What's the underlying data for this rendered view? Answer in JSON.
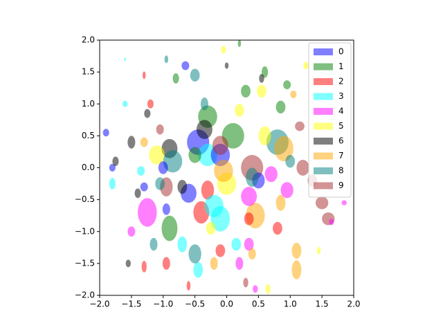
{
  "chart_data": {
    "type": "ellipse-scatter",
    "xlim": [
      -2,
      2
    ],
    "ylim": [
      -2,
      2
    ],
    "xticks": [
      {
        "value": -2,
        "label": "−2.0"
      },
      {
        "value": -1.5,
        "label": "−1.5"
      },
      {
        "value": -1,
        "label": "−1.0"
      },
      {
        "value": -0.5,
        "label": "−0.5"
      },
      {
        "value": 0,
        "label": "0.0"
      },
      {
        "value": 0.5,
        "label": "0.5"
      },
      {
        "value": 1,
        "label": "1.0"
      },
      {
        "value": 1.5,
        "label": "1.5"
      },
      {
        "value": 2,
        "label": "2.0"
      }
    ],
    "yticks": [
      {
        "value": -2,
        "label": "−2.0"
      },
      {
        "value": -1.5,
        "label": "−1.5"
      },
      {
        "value": -1,
        "label": "−1.0"
      },
      {
        "value": -0.5,
        "label": "−0.5"
      },
      {
        "value": 0,
        "label": "0.0"
      },
      {
        "value": 0.5,
        "label": "0.5"
      },
      {
        "value": 1,
        "label": "1.0"
      },
      {
        "value": 1.5,
        "label": "1.5"
      },
      {
        "value": 2,
        "label": "2.0"
      }
    ],
    "legend": "upper right",
    "alpha": 0.5,
    "series": [
      {
        "name": "0",
        "color": "#0000ff",
        "x": [
          -0.45,
          -0.1,
          -0.6,
          -1.0,
          -0.65,
          -1.9,
          -1.8,
          0.5,
          -0.95,
          -1.3
        ],
        "y": [
          0.4,
          0.2,
          -0.4,
          0.0,
          1.6,
          0.55,
          0.0,
          -0.2,
          -0.65,
          -0.3
        ],
        "w": [
          0.35,
          0.3,
          0.25,
          0.15,
          0.12,
          0.1,
          0.1,
          0.2,
          0.12,
          0.12
        ],
        "h": [
          0.4,
          0.35,
          0.3,
          0.2,
          0.14,
          0.12,
          0.12,
          0.25,
          0.18,
          0.14
        ]
      },
      {
        "name": "1",
        "color": "#008000",
        "x": [
          0.1,
          -0.3,
          0.3,
          -0.9,
          0.2,
          0.85,
          -0.8,
          0.6,
          0.95,
          -0.5
        ],
        "y": [
          0.5,
          0.8,
          1.2,
          -0.95,
          1.95,
          0.95,
          1.4,
          1.5,
          1.3,
          0.2
        ],
        "w": [
          0.35,
          0.3,
          0.15,
          0.25,
          0.05,
          0.15,
          0.1,
          0.1,
          0.12,
          0.2
        ],
        "h": [
          0.4,
          0.35,
          0.2,
          0.4,
          0.12,
          0.2,
          0.16,
          0.18,
          0.14,
          0.25
        ]
      },
      {
        "name": "2",
        "color": "#ff0000",
        "x": [
          -0.4,
          -0.3,
          -1.2,
          0.8,
          -0.95,
          -0.1,
          -1.3,
          -1.3,
          0.35,
          -0.6
        ],
        "y": [
          -0.7,
          -0.35,
          1.0,
          -0.95,
          -1.5,
          -1.3,
          1.45,
          -1.55,
          -0.8,
          -1.85
        ],
        "w": [
          0.25,
          0.2,
          0.1,
          0.15,
          0.12,
          0.15,
          0.05,
          0.08,
          0.15,
          0.06
        ],
        "h": [
          0.35,
          0.3,
          0.14,
          0.2,
          0.2,
          0.2,
          0.12,
          0.18,
          0.2,
          0.15
        ]
      },
      {
        "name": "3",
        "color": "#00ffff",
        "x": [
          -0.3,
          -0.1,
          -0.45,
          -1.8,
          -0.2,
          -1.6,
          -1.35,
          -0.7,
          0.15,
          -1.6
        ],
        "y": [
          0.2,
          -0.8,
          -1.6,
          -0.25,
          -0.6,
          1.0,
          -0.05,
          -1.2,
          -1.2,
          1.7
        ],
        "w": [
          0.3,
          0.3,
          0.15,
          0.1,
          0.3,
          0.08,
          0.12,
          0.15,
          0.15,
          0.03
        ],
        "h": [
          0.35,
          0.4,
          0.25,
          0.18,
          0.35,
          0.1,
          0.15,
          0.25,
          0.2,
          0.05
        ]
      },
      {
        "name": "4",
        "color": "#ff00ff",
        "x": [
          -1.25,
          0.35,
          0.95,
          0.35,
          0.2,
          1.65,
          1.85,
          0.45,
          -1.5,
          0.7
        ],
        "y": [
          -0.7,
          -0.45,
          -0.35,
          -1.2,
          -1.5,
          -0.85,
          -0.55,
          -1.9,
          -1.0,
          -0.1
        ],
        "w": [
          0.3,
          0.25,
          0.2,
          0.15,
          0.12,
          0.08,
          0.08,
          0.08,
          0.12,
          0.2
        ],
        "h": [
          0.45,
          0.3,
          0.25,
          0.2,
          0.2,
          0.1,
          0.08,
          0.12,
          0.16,
          0.25
        ]
      },
      {
        "name": "5",
        "color": "#ffff00",
        "x": [
          0.0,
          -1.1,
          0.6,
          0.55,
          -0.05,
          0.65,
          1.45,
          -0.25,
          1.25,
          0.2
        ],
        "y": [
          -0.25,
          0.2,
          0.5,
          1.2,
          1.85,
          -1.9,
          -1.3,
          -0.95,
          1.6,
          0.9
        ],
        "w": [
          0.3,
          0.25,
          0.2,
          0.15,
          0.08,
          0.08,
          0.06,
          0.15,
          0.08,
          0.15
        ],
        "h": [
          0.35,
          0.3,
          0.3,
          0.2,
          0.12,
          0.15,
          0.12,
          0.2,
          0.12,
          0.2
        ]
      },
      {
        "name": "6",
        "color": "#000000",
        "x": [
          -0.9,
          -0.35,
          -1.5,
          -0.7,
          0.0,
          -1.55,
          -1.75,
          -1.25,
          0.55,
          -1.4
        ],
        "y": [
          0.3,
          0.6,
          0.4,
          -0.3,
          1.6,
          -1.5,
          0.1,
          0.85,
          1.4,
          -0.4
        ],
        "w": [
          0.25,
          0.25,
          0.12,
          0.15,
          0.06,
          0.08,
          0.1,
          0.1,
          0.08,
          0.1
        ],
        "h": [
          0.3,
          0.3,
          0.2,
          0.22,
          0.1,
          0.12,
          0.15,
          0.14,
          0.14,
          0.15
        ]
      },
      {
        "name": "7",
        "color": "#ffa500",
        "x": [
          0.45,
          0.9,
          1.1,
          1.1,
          -0.05,
          0.4,
          -1.3,
          0.85,
          -0.2,
          1.05
        ],
        "y": [
          -0.75,
          0.3,
          -1.6,
          -1.3,
          -0.05,
          -1.35,
          0.4,
          -0.55,
          -1.5,
          1.15
        ],
        "w": [
          0.3,
          0.3,
          0.15,
          0.15,
          0.3,
          0.12,
          0.12,
          0.15,
          0.12,
          0.1
        ],
        "h": [
          0.4,
          0.4,
          0.3,
          0.25,
          0.35,
          0.18,
          0.15,
          0.25,
          0.2,
          0.12
        ]
      },
      {
        "name": "8",
        "color": "#008080",
        "x": [
          0.8,
          -0.85,
          -0.5,
          -0.95,
          -0.5,
          -1.15,
          -1.05,
          0.4,
          -0.35,
          1.0
        ],
        "y": [
          0.4,
          0.1,
          1.45,
          1.7,
          -1.35,
          -1.2,
          -0.25,
          -0.15,
          1.0,
          0.1
        ],
        "w": [
          0.35,
          0.3,
          0.15,
          0.06,
          0.2,
          0.12,
          0.15,
          0.2,
          0.12,
          0.15
        ],
        "h": [
          0.4,
          0.35,
          0.2,
          0.12,
          0.3,
          0.2,
          0.2,
          0.3,
          0.2,
          0.2
        ]
      },
      {
        "name": "9",
        "color": "#a52a2a",
        "x": [
          0.4,
          -0.95,
          1.2,
          1.5,
          1.6,
          1.15,
          0.3,
          -0.1,
          1.35,
          -1.05
        ],
        "y": [
          0.0,
          -0.3,
          0.0,
          -0.55,
          -0.8,
          0.65,
          -1.8,
          0.35,
          -0.2,
          0.6
        ],
        "w": [
          0.35,
          0.2,
          0.2,
          0.2,
          0.2,
          0.15,
          0.08,
          0.25,
          0.15,
          0.12
        ],
        "h": [
          0.4,
          0.3,
          0.25,
          0.2,
          0.2,
          0.15,
          0.15,
          0.3,
          0.2,
          0.16
        ]
      }
    ]
  }
}
